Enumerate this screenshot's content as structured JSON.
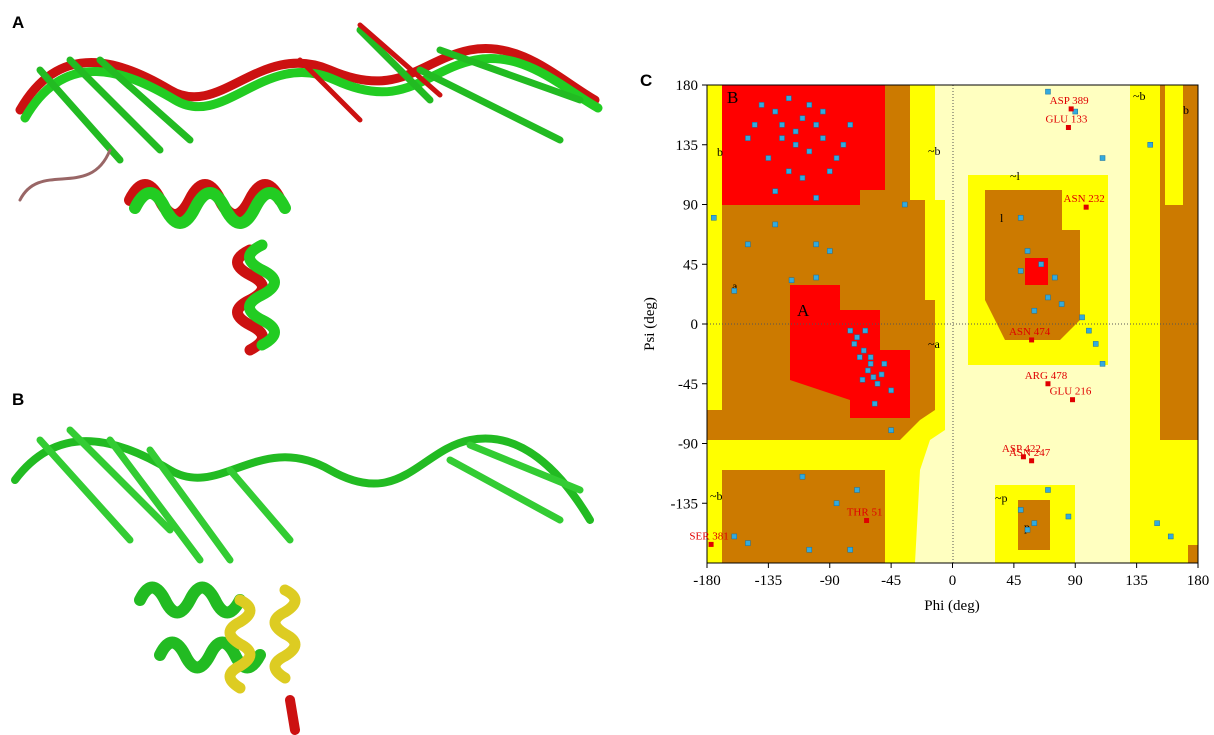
{
  "panels": [
    "A",
    "B",
    "C"
  ],
  "chart_data": {
    "type": "scatter",
    "xlabel": "Phi (deg)",
    "ylabel": "Psi (deg)",
    "xlim": [
      -180,
      180
    ],
    "ylim": [
      -180,
      180
    ],
    "xticks": [
      -180,
      -135,
      -90,
      -45,
      0,
      45,
      90,
      135,
      180
    ],
    "yticks": [
      -135,
      -90,
      -45,
      0,
      45,
      90,
      135,
      180
    ],
    "region_labels": [
      "B",
      "b",
      "A",
      "a",
      "l",
      "~b",
      "~a",
      "~l",
      "~p",
      "p",
      "~b",
      "b",
      "~b"
    ],
    "series": [
      {
        "color": "#33aadd",
        "x": [
          -140,
          -130,
          -120,
          -110,
          -100,
          -125,
          -115,
          -105,
          -95,
          -85,
          -135,
          -145,
          -120,
          -110,
          -90,
          -80,
          -75,
          -130,
          -100,
          -150,
          -125,
          -105,
          -95,
          -115,
          -70,
          -65,
          -60,
          -58,
          -55,
          -62,
          -68,
          -72,
          -60,
          -52,
          -66,
          -75,
          -64,
          -50,
          -45,
          -57,
          -175,
          -160,
          -150,
          -100,
          -90,
          -100,
          -118,
          -130,
          -35,
          -45,
          -110,
          -150,
          -160,
          -75,
          -85,
          -70,
          -105,
          50,
          50,
          55,
          65,
          70,
          75,
          80,
          60,
          95,
          100,
          105,
          110,
          70,
          110,
          90,
          50,
          55,
          60,
          70,
          85,
          160,
          150,
          145
        ],
        "values": [
          165,
          160,
          170,
          155,
          150,
          140,
          135,
          130,
          140,
          125,
          125,
          150,
          115,
          110,
          115,
          135,
          150,
          100,
          95,
          140,
          150,
          165,
          160,
          145,
          -10,
          -20,
          -30,
          -40,
          -45,
          -35,
          -25,
          -15,
          -25,
          -38,
          -42,
          -5,
          -5,
          -30,
          -50,
          -60,
          80,
          25,
          60,
          60,
          55,
          35,
          33,
          75,
          90,
          -80,
          -115,
          -165,
          -160,
          -170,
          -135,
          -125,
          -170,
          80,
          40,
          55,
          45,
          20,
          35,
          15,
          10,
          5,
          -5,
          -15,
          -30,
          175,
          125,
          160,
          -140,
          -155,
          -150,
          -125,
          -145,
          -160,
          -150,
          135
        ]
      },
      {
        "color": "#e00000",
        "labels": [
          "ASP 389",
          "GLU 133",
          "ASN 232",
          "ASN 474",
          "ARG 478",
          "GLU 216",
          "ASP 422",
          "ASN 247",
          "THR 51",
          "SER 381"
        ],
        "x": [
          87,
          85,
          98,
          58,
          70,
          88,
          52,
          58,
          -63,
          -177
        ],
        "values": [
          162,
          148,
          88,
          -12,
          -45,
          -57,
          -100,
          -103,
          -148,
          -166
        ]
      }
    ]
  }
}
